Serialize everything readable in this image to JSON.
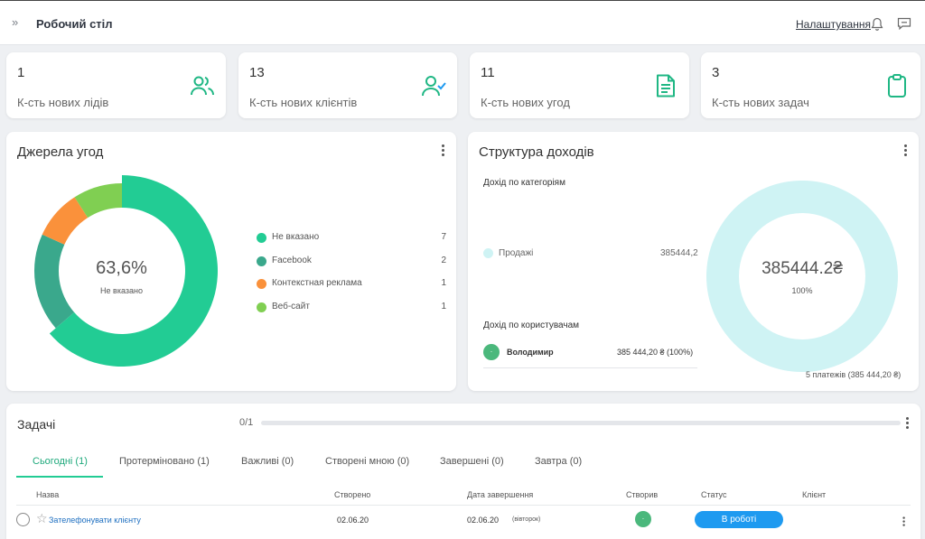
{
  "header": {
    "title": "Робочий стіл",
    "settings_label": "Налаштування",
    "expand_glyph": "»"
  },
  "stats": [
    {
      "value": "1",
      "label": "К-сть нових лідів",
      "icon": "users-icon"
    },
    {
      "value": "13",
      "label": "К-сть нових клієнтів",
      "icon": "user-check-icon"
    },
    {
      "value": "11",
      "label": "К-сть нових угод",
      "icon": "document-icon"
    },
    {
      "value": "3",
      "label": "К-сть нових задач",
      "icon": "clipboard-icon"
    }
  ],
  "sources": {
    "title": "Джерела угод",
    "center_value": "63,6%",
    "center_label": "Не вказано",
    "chart_data": {
      "type": "pie",
      "title": "Джерела угод",
      "categories": [
        "Не вказано",
        "Facebook",
        "Контекстная реклама",
        "Веб-сайт"
      ],
      "values": [
        7,
        2,
        1,
        1
      ],
      "colors": [
        "#22cc94",
        "#3aa88c",
        "#fa913b",
        "#80cf52"
      ]
    },
    "legend": [
      {
        "name": "Не вказано",
        "count": "7"
      },
      {
        "name": "Facebook",
        "count": "2"
      },
      {
        "name": "Контекстная реклама",
        "count": "1"
      },
      {
        "name": "Веб-сайт",
        "count": "1"
      }
    ]
  },
  "income": {
    "title": "Структура доходів",
    "by_category_title": "Дохід по категоріям",
    "category_name": "Продажі",
    "category_value": "385444,2",
    "by_user_title": "Дохід по користувачам",
    "user_name": "Володимир",
    "user_value": "385 444,20 ₴ (100%)",
    "donut_value": "385444.2₴",
    "donut_percent": "100%",
    "payments": "5 платежів (385 444,20 ₴)",
    "chart_data": {
      "type": "pie",
      "title": "Структура доходів",
      "categories": [
        "Продажі"
      ],
      "values": [
        385444.2
      ],
      "colors": [
        "#cff3f4"
      ]
    }
  },
  "tasks": {
    "title": "Задачі",
    "progress": "0/1",
    "progress_fraction": 0,
    "tabs": [
      "Сьогодні (1)",
      "Протерміновано (1)",
      "Важливі (0)",
      "Створені мною (0)",
      "Завершені (0)",
      "Завтра (0)"
    ],
    "columns": [
      "Назва",
      "Створено",
      "Дата завершення",
      "Створив",
      "Статус",
      "Клієнт"
    ],
    "rows": [
      {
        "name": "Зателефонувати клієнту",
        "created": "02.06.20",
        "due": "02.06.20",
        "due_note": "(вівторок)",
        "creator_glyph": "·",
        "status": "В роботі",
        "client": ""
      }
    ]
  },
  "colors": {
    "accent": "#22cc94",
    "status_blue": "#1e9af0",
    "cyan_donut": "#cff3f4"
  }
}
